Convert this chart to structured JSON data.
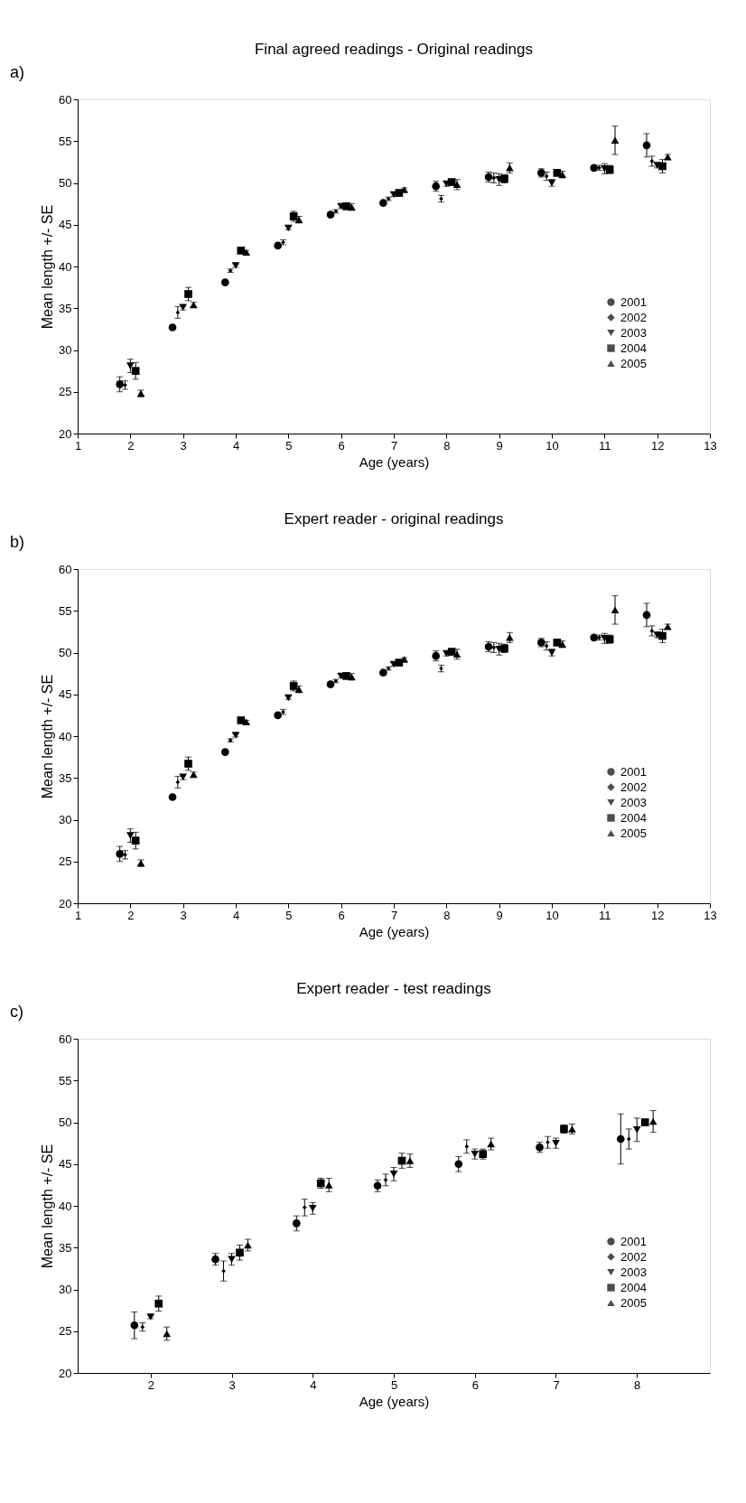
{
  "chart_data": [
    {
      "type": "scatter",
      "title": "Final agreed readings - Original readings",
      "xlabel": "Age (years)",
      "ylabel": "Mean length +/- SE",
      "annotations": [
        "a)"
      ],
      "xlim": [
        1,
        13
      ],
      "xticks": [
        1,
        2,
        3,
        4,
        5,
        6,
        7,
        8,
        9,
        10,
        11,
        12,
        13
      ],
      "ylim": [
        20,
        60
      ],
      "yticks": [
        20,
        25,
        30,
        35,
        40,
        45,
        50,
        55,
        60
      ],
      "grid": false,
      "legend": "bottom right",
      "series": [
        {
          "name": "2001",
          "color": "#000000",
          "marker": "circle",
          "x": [
            1.8,
            2.8,
            3.8,
            4.8,
            5.8,
            6.8,
            7.8,
            8.8,
            9.8,
            10.8,
            11.8
          ],
          "values": [
            25.9,
            32.7,
            38.1,
            42.5,
            46.2,
            47.6,
            49.6,
            50.7,
            51.2,
            51.8,
            54.5
          ],
          "errors": [
            0.9,
            0.2,
            0.2,
            0.2,
            0.2,
            0.2,
            0.6,
            0.6,
            0.5,
            0.2,
            1.4
          ]
        },
        {
          "name": "2002",
          "color": "#000000",
          "marker": "diamond",
          "x": [
            1.9,
            2.9,
            3.9,
            4.9,
            5.9,
            6.9,
            7.9,
            8.9,
            9.9,
            10.9,
            11.9
          ],
          "values": [
            25.8,
            34.5,
            39.5,
            42.9,
            46.6,
            48.1,
            48.1,
            50.6,
            50.8,
            51.8,
            52.6
          ],
          "errors": [
            0.5,
            0.7,
            0.2,
            0.3,
            0.2,
            0.2,
            0.4,
            0.6,
            0.5,
            0.3,
            0.6
          ]
        },
        {
          "name": "2003",
          "color": "#000000",
          "marker": "triangle-down",
          "x": [
            2,
            3,
            4,
            5,
            6,
            7,
            8,
            9,
            10,
            11,
            12
          ],
          "values": [
            28.1,
            35.1,
            40.1,
            44.6,
            47.2,
            48.6,
            49.9,
            50.4,
            50.0,
            51.7,
            52.1
          ],
          "errors": [
            0.8,
            0.3,
            0.2,
            0.2,
            0.2,
            0.2,
            0.3,
            0.7,
            0.4,
            0.6,
            0.3
          ]
        },
        {
          "name": "2004",
          "color": "#000000",
          "marker": "square",
          "x": [
            2.1,
            3.1,
            4.1,
            5.1,
            6.1,
            7.1,
            8.1,
            9.1,
            10.1,
            11.1,
            12.1
          ],
          "values": [
            27.5,
            36.7,
            41.9,
            46.0,
            47.2,
            48.8,
            50.1,
            50.5,
            51.2,
            51.6,
            52.0
          ],
          "errors": [
            1.0,
            0.8,
            0.2,
            0.6,
            0.2,
            0.2,
            0.2,
            0.5,
            0.2,
            0.5,
            0.8
          ]
        },
        {
          "name": "2005",
          "color": "#000000",
          "marker": "triangle",
          "x": [
            2.2,
            3.2,
            4.2,
            5.2,
            6.2,
            7.2,
            8.2,
            9.2,
            10.2,
            11.2,
            12.2
          ],
          "values": [
            24.8,
            35.4,
            41.7,
            45.6,
            47.1,
            49.2,
            49.8,
            51.8,
            51.0,
            55.1,
            53.1
          ],
          "errors": [
            0.4,
            0.3,
            0.2,
            0.4,
            0.4,
            0.2,
            0.6,
            0.6,
            0.4,
            1.7,
            0.3
          ]
        }
      ]
    },
    {
      "type": "scatter",
      "title": "Expert reader - original readings",
      "xlabel": "Age (years)",
      "ylabel": "Mean length +/- SE",
      "annotations": [
        "b)"
      ],
      "xlim": [
        1,
        13
      ],
      "xticks": [
        1,
        2,
        3,
        4,
        5,
        6,
        7,
        8,
        9,
        10,
        11,
        12,
        13
      ],
      "ylim": [
        20,
        60
      ],
      "yticks": [
        20,
        25,
        30,
        35,
        40,
        45,
        50,
        55,
        60
      ],
      "grid": false,
      "legend": "bottom right",
      "series": [
        {
          "name": "2001",
          "color": "#000000",
          "marker": "circle",
          "x": [
            1.8,
            2.8,
            3.8,
            4.8,
            5.8,
            6.8,
            7.8,
            8.8,
            9.8,
            10.8,
            11.8
          ],
          "values": [
            25.9,
            32.7,
            38.1,
            42.5,
            46.2,
            47.6,
            49.6,
            50.7,
            51.2,
            51.8,
            54.5
          ],
          "errors": [
            0.9,
            0.2,
            0.2,
            0.2,
            0.2,
            0.2,
            0.6,
            0.6,
            0.5,
            0.2,
            1.4
          ]
        },
        {
          "name": "2002",
          "color": "#000000",
          "marker": "diamond",
          "x": [
            1.9,
            2.9,
            3.9,
            4.9,
            5.9,
            6.9,
            7.9,
            8.9,
            9.9,
            10.9,
            11.9
          ],
          "values": [
            25.8,
            34.5,
            39.5,
            42.9,
            46.6,
            48.1,
            48.1,
            50.6,
            50.8,
            51.8,
            52.6
          ],
          "errors": [
            0.5,
            0.7,
            0.2,
            0.3,
            0.2,
            0.2,
            0.4,
            0.6,
            0.5,
            0.3,
            0.6
          ]
        },
        {
          "name": "2003",
          "color": "#000000",
          "marker": "triangle-down",
          "x": [
            2,
            3,
            4,
            5,
            6,
            7,
            8,
            9,
            10,
            11,
            12
          ],
          "values": [
            28.1,
            35.1,
            40.1,
            44.6,
            47.2,
            48.6,
            49.9,
            50.4,
            50.0,
            51.7,
            52.1
          ],
          "errors": [
            0.8,
            0.3,
            0.2,
            0.2,
            0.2,
            0.2,
            0.3,
            0.7,
            0.4,
            0.6,
            0.3
          ]
        },
        {
          "name": "2004",
          "color": "#000000",
          "marker": "square",
          "x": [
            2.1,
            3.1,
            4.1,
            5.1,
            6.1,
            7.1,
            8.1,
            9.1,
            10.1,
            11.1,
            12.1
          ],
          "values": [
            27.5,
            36.7,
            41.9,
            46.0,
            47.2,
            48.8,
            50.1,
            50.5,
            51.2,
            51.6,
            52.0
          ],
          "errors": [
            1.0,
            0.8,
            0.2,
            0.6,
            0.2,
            0.2,
            0.2,
            0.5,
            0.2,
            0.5,
            0.8
          ]
        },
        {
          "name": "2005",
          "color": "#000000",
          "marker": "triangle",
          "x": [
            2.2,
            3.2,
            4.2,
            5.2,
            6.2,
            7.2,
            8.2,
            9.2,
            10.2,
            11.2,
            12.2
          ],
          "values": [
            24.8,
            35.4,
            41.7,
            45.6,
            47.1,
            49.2,
            49.8,
            51.8,
            51.0,
            55.1,
            53.1
          ],
          "errors": [
            0.4,
            0.3,
            0.2,
            0.4,
            0.4,
            0.2,
            0.6,
            0.6,
            0.4,
            1.7,
            0.3
          ]
        }
      ]
    },
    {
      "type": "scatter",
      "title": "Expert reader - test readings",
      "xlabel": "Age (years)",
      "ylabel": "Mean length +/- SE",
      "annotations": [
        "c)"
      ],
      "xlim": [
        1.1,
        8.9
      ],
      "xticks": [
        2,
        3,
        4,
        5,
        6,
        7,
        8
      ],
      "ylim": [
        20,
        60
      ],
      "yticks": [
        20,
        25,
        30,
        35,
        40,
        45,
        50,
        55,
        60
      ],
      "grid": false,
      "legend": "bottom right",
      "series": [
        {
          "name": "2001",
          "color": "#000000",
          "marker": "circle",
          "x": [
            1.8,
            2.8,
            3.8,
            4.8,
            5.8,
            6.8,
            7.8
          ],
          "values": [
            25.7,
            33.6,
            37.9,
            42.4,
            45.0,
            47.0,
            48.0
          ],
          "errors": [
            1.6,
            0.7,
            0.9,
            0.7,
            0.9,
            0.6,
            3.0
          ]
        },
        {
          "name": "2002",
          "color": "#000000",
          "marker": "diamond",
          "x": [
            1.9,
            2.9,
            3.9,
            4.9,
            5.9,
            6.9,
            7.9
          ],
          "values": [
            25.5,
            32.2,
            39.8,
            43.1,
            47.1,
            47.6,
            48.0
          ],
          "errors": [
            0.5,
            1.2,
            1.0,
            0.7,
            0.8,
            0.7,
            1.2
          ]
        },
        {
          "name": "2003",
          "color": "#000000",
          "marker": "triangle-down",
          "x": [
            2,
            3,
            4,
            5,
            6,
            7,
            8
          ],
          "values": [
            26.7,
            33.6,
            39.7,
            43.8,
            46.2,
            47.5,
            49.1
          ],
          "errors": [
            0.2,
            0.7,
            0.7,
            0.8,
            0.6,
            0.6,
            1.4
          ]
        },
        {
          "name": "2004",
          "color": "#000000",
          "marker": "square",
          "x": [
            2.1,
            3.1,
            4.1,
            5.1,
            6.1,
            7.1,
            8.1
          ],
          "values": [
            28.3,
            34.4,
            42.7,
            45.4,
            46.2,
            49.2,
            50.0
          ],
          "errors": [
            0.9,
            0.9,
            0.6,
            0.9,
            0.6,
            0.5,
            0.2
          ]
        },
        {
          "name": "2005",
          "color": "#000000",
          "marker": "triangle",
          "x": [
            2.2,
            3.2,
            4.2,
            5.2,
            6.2,
            7.2,
            8.2
          ],
          "values": [
            24.7,
            35.3,
            42.5,
            45.4,
            47.4,
            49.2,
            50.1
          ],
          "errors": [
            0.8,
            0.7,
            0.8,
            0.8,
            0.7,
            0.6,
            1.3
          ]
        }
      ]
    }
  ]
}
